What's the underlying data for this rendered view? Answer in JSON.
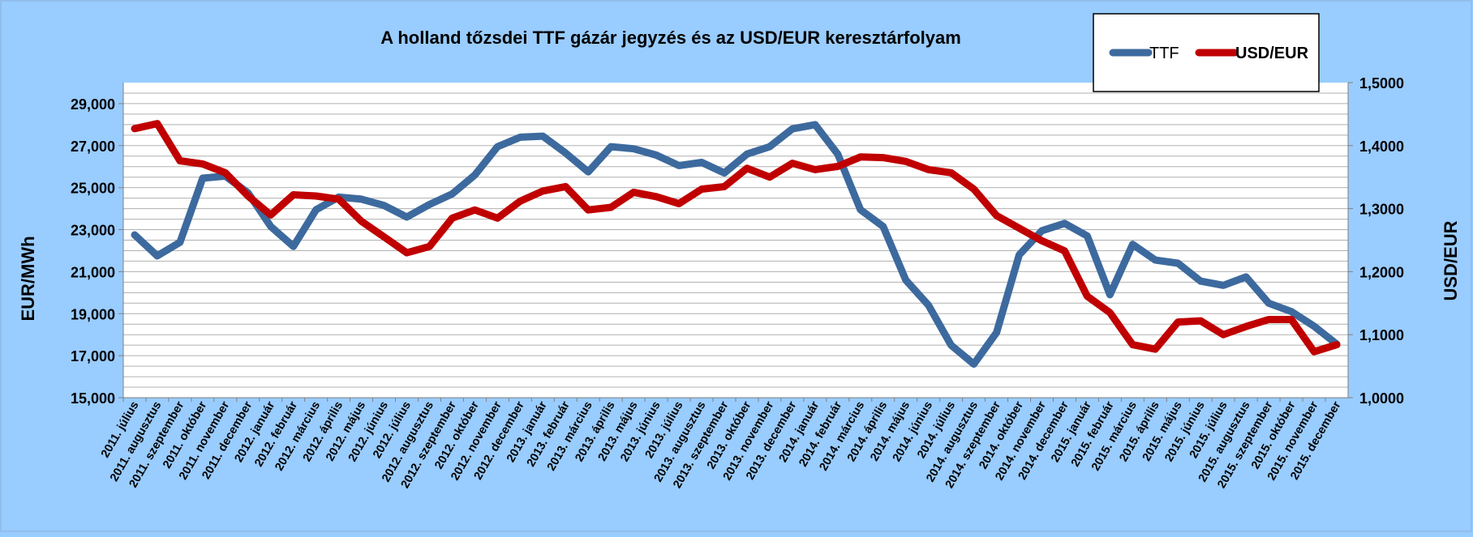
{
  "chart_data": {
    "type": "line",
    "title": "A holland tőzsdei TTF gázár jegyzés és az USD/EUR keresztárfolyam",
    "ylabel": "EUR/MWh",
    "y2label": "USD/EUR",
    "ylim": [
      15000,
      30000
    ],
    "y2lim": [
      1.0,
      1.5
    ],
    "yticks": [
      "15,000",
      "17,000",
      "19,000",
      "21,000",
      "23,000",
      "25,000",
      "27,000",
      "29,000"
    ],
    "y2ticks": [
      "1,0000",
      "1,1000",
      "1,2000",
      "1,3000",
      "1,4000",
      "1,5000"
    ],
    "grid": true,
    "legend": "top-right",
    "categories": [
      "2011. július",
      "2011. augusztus",
      "2011. szeptember",
      "2011. október",
      "2011. november",
      "2011. december",
      "2012. január",
      "2012. február",
      "2012. március",
      "2012. április",
      "2012. május",
      "2012. június",
      "2012. július",
      "2012. augusztus",
      "2012. szeptember",
      "2012. október",
      "2012. november",
      "2012. december",
      "2013. január",
      "2013. február",
      "2013. március",
      "2013. április",
      "2013. május",
      "2013. június",
      "2013. július",
      "2013. augusztus",
      "2013. szeptember",
      "2013. október",
      "2013. november",
      "2013. december",
      "2014. január",
      "2014. február",
      "2014. március",
      "2014. április",
      "2014. május",
      "2014. június",
      "2014. július",
      "2014. augusztus",
      "2014. szeptember",
      "2014. október",
      "2014. november",
      "2014. december",
      "2015. január",
      "2015. február",
      "2015. március",
      "2015. április",
      "2015. május",
      "2015. június",
      "2015. július",
      "2015. augusztus",
      "2015. szeptember",
      "2015. október",
      "2015. november",
      "2015. december"
    ],
    "series": [
      {
        "name": "TTF",
        "axis": "left",
        "color": "#3d6a9e",
        "values": [
          22750,
          21750,
          22400,
          25450,
          25550,
          24750,
          23150,
          22200,
          23950,
          24550,
          24450,
          24150,
          23600,
          24200,
          24700,
          25600,
          26950,
          27400,
          27450,
          26650,
          25750,
          26950,
          26850,
          26550,
          26050,
          26200,
          25700,
          26600,
          26950,
          27800,
          28000,
          26600,
          23950,
          23150,
          20600,
          19400,
          17500,
          16600,
          18100,
          21800,
          22950,
          23300,
          22700,
          19900,
          22300,
          21550,
          21400,
          20550,
          20350,
          20750,
          19500,
          19100,
          18400,
          17550
        ]
      },
      {
        "name": "USD/EUR",
        "axis": "right",
        "color": "#c00000",
        "values": [
          1.427,
          1.435,
          1.376,
          1.371,
          1.357,
          1.32,
          1.29,
          1.322,
          1.32,
          1.315,
          1.28,
          1.255,
          1.23,
          1.24,
          1.285,
          1.298,
          1.285,
          1.312,
          1.328,
          1.335,
          1.298,
          1.302,
          1.326,
          1.319,
          1.308,
          1.331,
          1.335,
          1.364,
          1.35,
          1.372,
          1.362,
          1.367,
          1.382,
          1.381,
          1.375,
          1.362,
          1.357,
          1.331,
          1.289,
          1.269,
          1.249,
          1.233,
          1.161,
          1.135,
          1.084,
          1.077,
          1.12,
          1.122,
          1.1,
          1.113,
          1.124,
          1.124,
          1.073,
          1.084
        ]
      }
    ]
  }
}
